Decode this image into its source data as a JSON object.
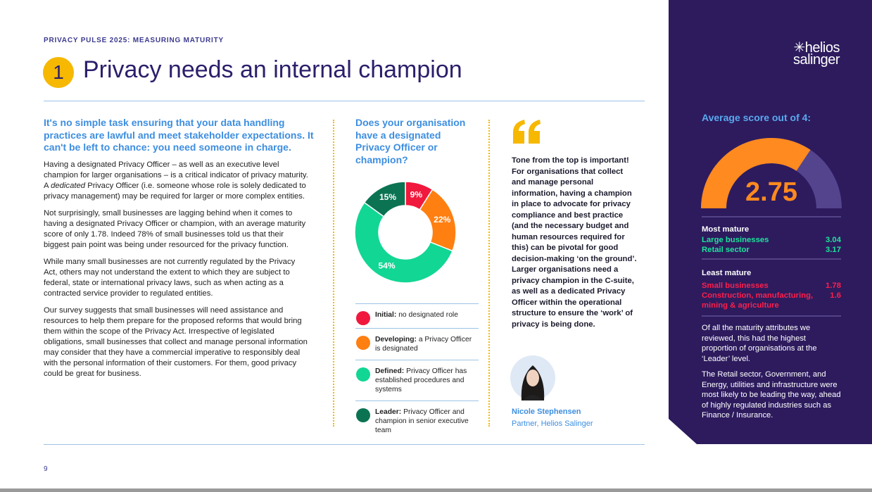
{
  "header": {
    "kicker": "PRIVACY PULSE 2025: MEASURING MATURITY",
    "number": "1",
    "title": "Privacy needs an internal champion"
  },
  "lead": "It's no simple task ensuring that your data handling practices are lawful and meet stakeholder expectations. It can't be left to chance: you need someone in charge.",
  "paragraphs": [
    [
      "Having a designated Privacy Officer – as well as an executive level champion for larger organisations – is a critical indicator of privacy maturity. A ",
      "dedicated",
      " Privacy Officer (i.e. someone whose role is solely dedicated to privacy management) may be required for larger or more complex entities."
    ],
    "Not surprisingly, small businesses are lagging behind when it comes to having a designated Privacy Officer or champion, with an average maturity score of only 1.78. Indeed 78% of small businesses told us that their biggest pain point was being under resourced for the privacy function.",
    "While many small businesses are not currently regulated by the Privacy Act, others may not understand the extent to which they are subject to federal, state or international privacy laws, such as when acting as a contracted service provider to regulated entities.",
    "Our survey suggests that small businesses will need assistance and resources to help them prepare for the proposed reforms that would bring them within the scope of the Privacy Act. Irrespective of legislated obligations, small businesses that collect and manage personal information may consider that they have a commercial imperative to responsibly deal with the personal information of their customers. For them, good privacy could be great for business."
  ],
  "chart": {
    "type": "pie",
    "title": "Does your organisation have a designated Privacy Officer or champion?",
    "values": [
      9,
      22,
      54,
      15
    ],
    "value_labels": [
      "9%",
      "22%",
      "54%",
      "15%"
    ],
    "colors": [
      "#f0183c",
      "#ff7f11",
      "#12d694",
      "#0c7352"
    ],
    "legend": [
      {
        "term": "Initial:",
        "text": "no designated role"
      },
      {
        "term": "Developing:",
        "text": "a Privacy Officer is designated"
      },
      {
        "term": "Defined:",
        "text": "Privacy Officer has established procedures and systems"
      },
      {
        "term": "Leader:",
        "text": "Privacy Officer and champion in senior executive team"
      }
    ]
  },
  "quote": {
    "text": "Tone from the top is important! For organisations that collect and manage personal information, having a champion in place to advocate for privacy compliance and best practice (and the necessary budget and human resources required for this) can be pivotal for good decision-making ‘on the ground’. Larger organisations need a privacy champion in the C-suite, as well as a dedicated Privacy Officer within the operational structure to ensure the ‘work’ of privacy is being done.",
    "name": "Nicole Stephensen",
    "role": "Partner, Helios Salinger"
  },
  "sidebar": {
    "logo": [
      "✳helios",
      "salinger"
    ],
    "gauge": {
      "title": "Average score out of 4:",
      "value": 2.75,
      "range": [
        0,
        4
      ]
    },
    "most": {
      "title": "Most mature",
      "rows": [
        {
          "label": "Large businesses",
          "value": 3.04
        },
        {
          "label": "Retail sector",
          "value": 3.17
        }
      ]
    },
    "least": {
      "title": "Least mature",
      "rows": [
        {
          "label": "Small businesses",
          "value": 1.78
        },
        {
          "label": "Construction, manufacturing, mining & agriculture",
          "value": 1.6
        }
      ]
    },
    "paragraphs": [
      "Of all the maturity attributes we reviewed, this had the highest proportion of organisations at the ‘Leader’ level.",
      "The Retail sector, Government, and Energy, utilities and infrastructure were most likely to be leading the way, ahead of highly regulated industries such as Finance / Insurance."
    ]
  },
  "page_number": "9"
}
